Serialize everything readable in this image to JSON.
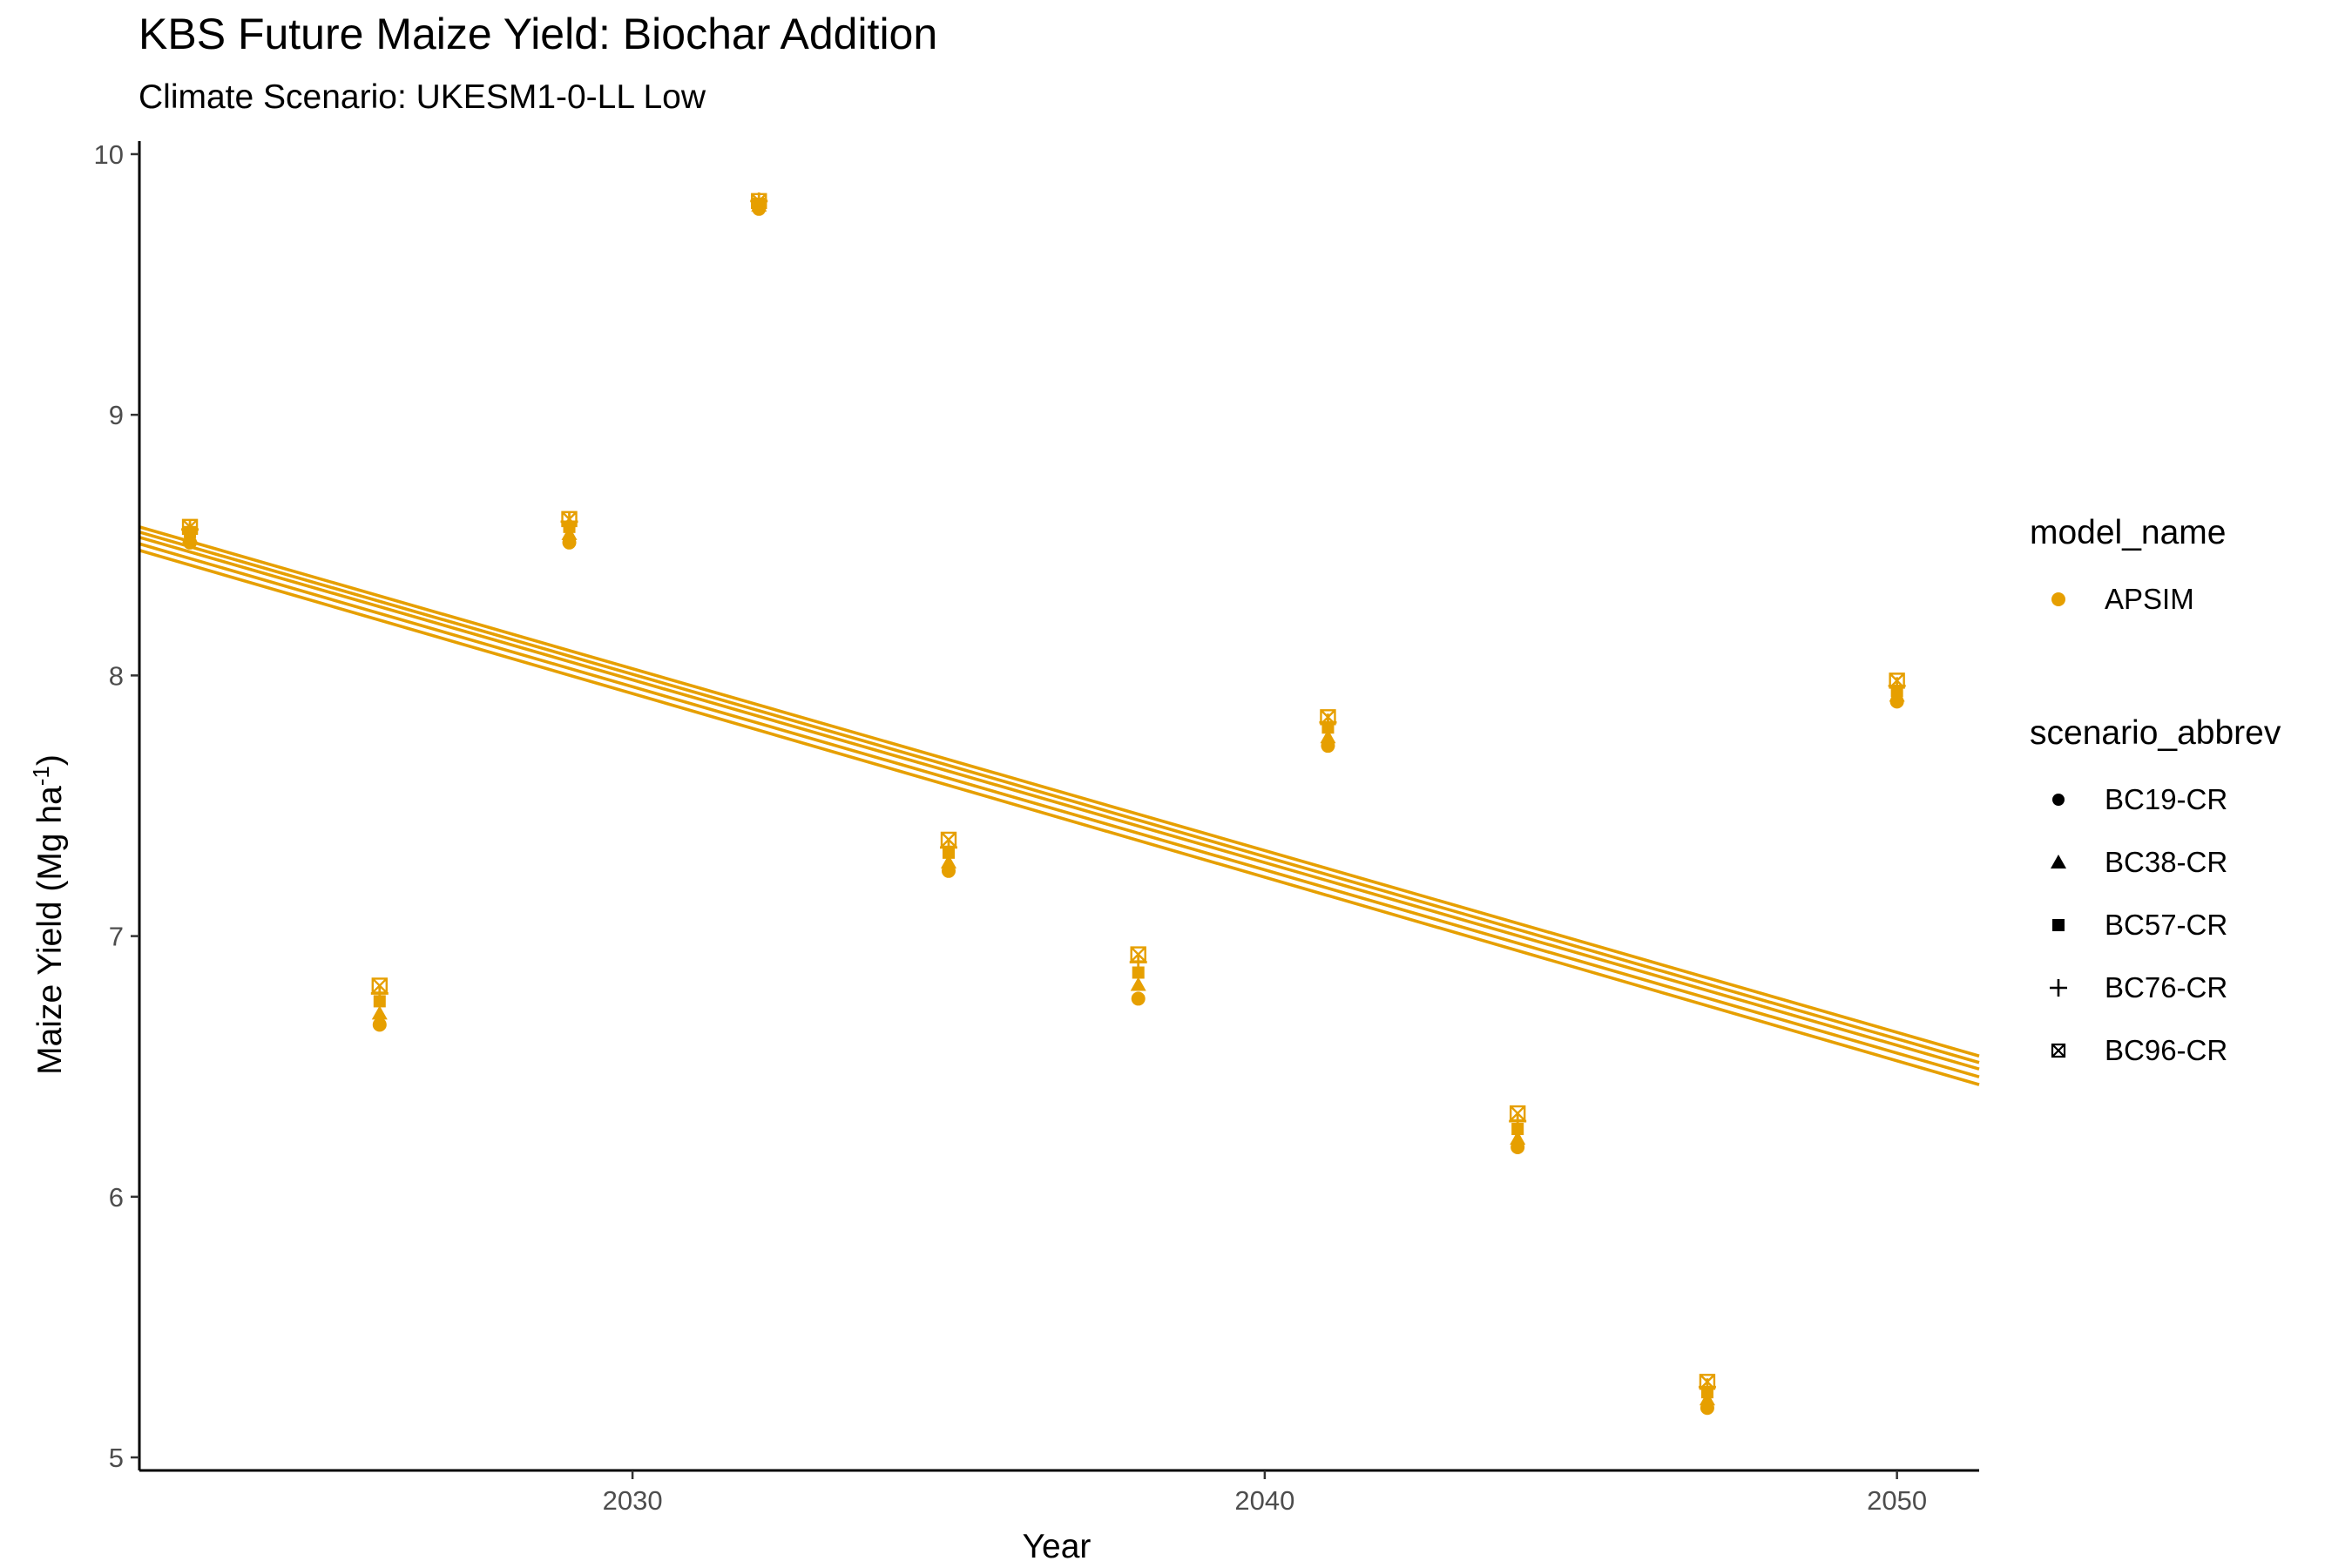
{
  "title": "KBS Future Maize Yield: Biochar Addition",
  "subtitle": "Climate Scenario: UKESM1-0-LL Low",
  "colors": {
    "series": "#E69F00",
    "axis": "#000000",
    "tick_text": "#4d4d4d"
  },
  "chart_data": {
    "type": "scatter",
    "xlabel": "Year",
    "ylabel": "Maize Yield (Mg ha",
    "ylabel_sup": "-1",
    "ylabel_close": ")",
    "xlim": [
      2022.2,
      2051.3
    ],
    "ylim": [
      4.95,
      10.05
    ],
    "x_ticks": [
      2030,
      2040,
      2050
    ],
    "y_ticks": [
      5,
      6,
      7,
      8,
      9,
      10
    ],
    "grid": false,
    "legend_position": "right",
    "legend": {
      "color_title": "model_name",
      "color_entries": [
        {
          "name": "APSIM",
          "color": "#E69F00"
        }
      ],
      "shape_title": "scenario_abbrev",
      "shape_entries": [
        {
          "name": "BC19-CR",
          "shape": "circle"
        },
        {
          "name": "BC38-CR",
          "shape": "triangle"
        },
        {
          "name": "BC57-CR",
          "shape": "square"
        },
        {
          "name": "BC76-CR",
          "shape": "plus"
        },
        {
          "name": "BC96-CR",
          "shape": "boxed-x"
        }
      ]
    },
    "x": [
      2023,
      2026,
      2029,
      2032,
      2035,
      2038,
      2041,
      2044,
      2047,
      2050
    ],
    "series": [
      {
        "name": "BC19-CR",
        "model": "APSIM",
        "shape": "circle",
        "values": [
          8.51,
          6.66,
          8.51,
          9.79,
          7.25,
          6.76,
          7.73,
          6.19,
          5.19,
          7.9
        ]
      },
      {
        "name": "BC38-CR",
        "model": "APSIM",
        "shape": "triangle",
        "values": [
          8.53,
          6.7,
          8.54,
          9.8,
          7.28,
          6.81,
          7.76,
          6.22,
          5.22,
          7.92
        ]
      },
      {
        "name": "BC57-CR",
        "model": "APSIM",
        "shape": "square",
        "values": [
          8.55,
          6.75,
          8.57,
          9.81,
          7.32,
          6.86,
          7.8,
          6.26,
          5.25,
          7.94
        ]
      },
      {
        "name": "BC76-CR",
        "model": "APSIM",
        "shape": "plus",
        "values": [
          8.56,
          6.78,
          8.59,
          9.82,
          7.34,
          6.9,
          7.82,
          6.29,
          5.27,
          7.96
        ]
      },
      {
        "name": "BC96-CR",
        "model": "APSIM",
        "shape": "boxed-x",
        "values": [
          8.57,
          6.81,
          8.6,
          9.82,
          7.37,
          6.93,
          7.84,
          6.32,
          5.29,
          7.98
        ]
      }
    ],
    "trend_lines": [
      {
        "series": "BC19-CR",
        "x": [
          2022.2,
          2051.3
        ],
        "y": [
          8.48,
          6.43
        ]
      },
      {
        "series": "BC38-CR",
        "x": [
          2022.2,
          2051.3
        ],
        "y": [
          8.505,
          6.46
        ]
      },
      {
        "series": "BC57-CR",
        "x": [
          2022.2,
          2051.3
        ],
        "y": [
          8.53,
          6.49
        ]
      },
      {
        "series": "BC76-CR",
        "x": [
          2022.2,
          2051.3
        ],
        "y": [
          8.55,
          6.515
        ]
      },
      {
        "series": "BC96-CR",
        "x": [
          2022.2,
          2051.3
        ],
        "y": [
          8.57,
          6.54
        ]
      }
    ]
  }
}
